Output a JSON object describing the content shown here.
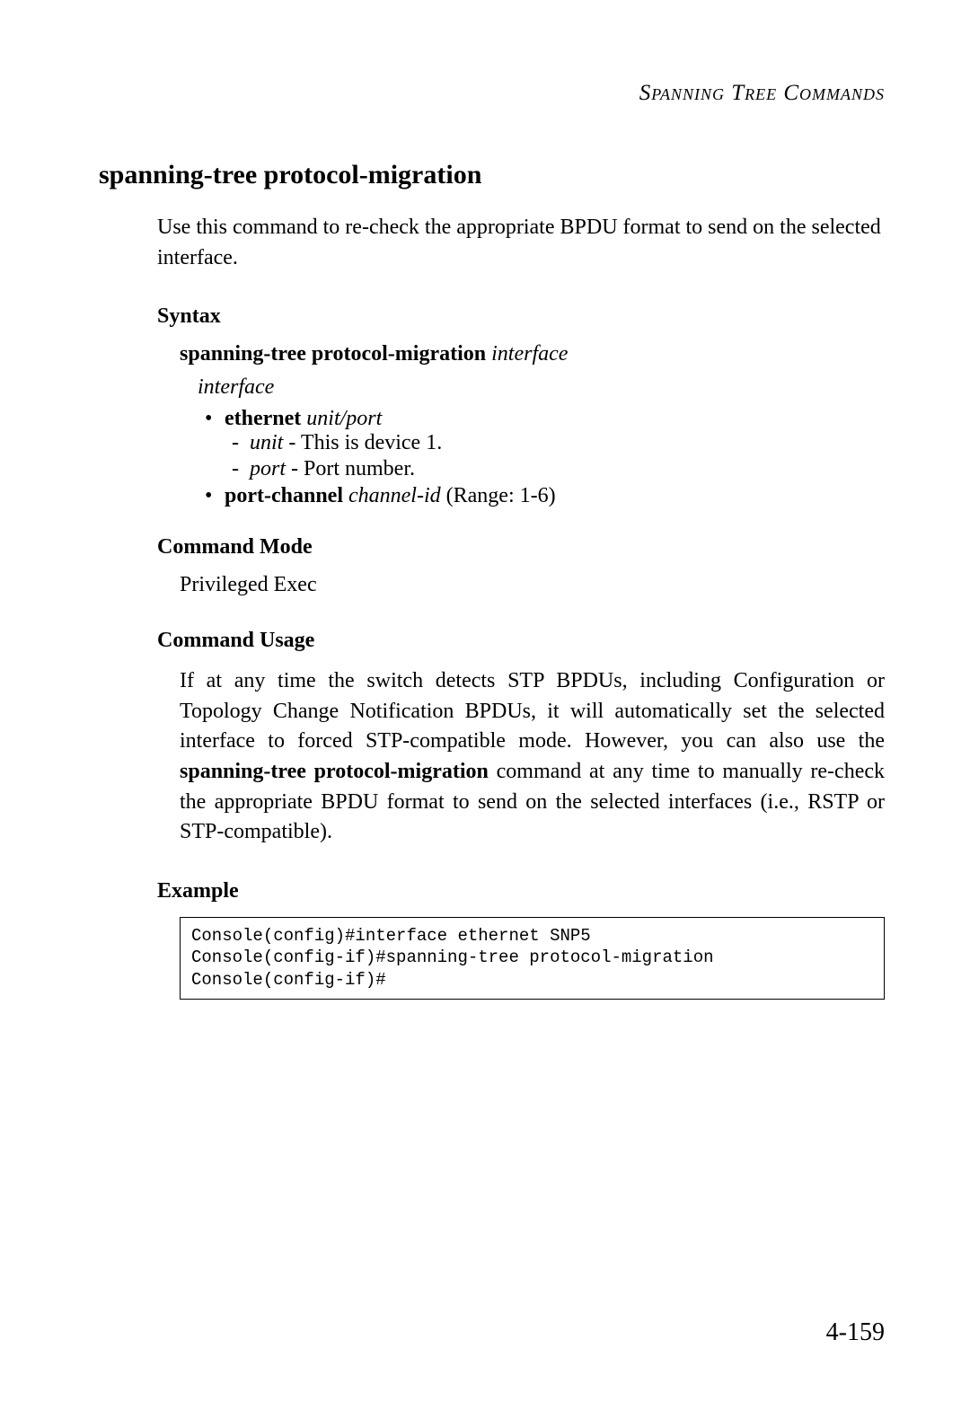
{
  "header": "Spanning Tree Commands",
  "mainHeading": "spanning-tree protocol-migration",
  "intro": "Use this command to re-check the appropriate BPDU format to send on the selected interface.",
  "sections": {
    "syntax": {
      "heading": "Syntax",
      "commandBold": "spanning-tree protocol-migration",
      "commandItalic": "interface",
      "interfaceLabel": "interface",
      "bullets": {
        "ethernet": {
          "bold": "ethernet",
          "italic": "unit/port",
          "unit": {
            "label": "unit",
            "desc": " - This is device 1."
          },
          "port": {
            "label": "port",
            "desc": " - Port number."
          }
        },
        "portChannel": {
          "bold": "port-channel",
          "italic": "channel-id",
          "after": " (Range: 1-6)"
        }
      }
    },
    "commandMode": {
      "heading": "Command Mode",
      "text": "Privileged Exec"
    },
    "commandUsage": {
      "heading": "Command Usage",
      "text1": "If at any time the switch detects STP BPDUs, including Configuration or Topology Change Notification BPDUs, it will automatically set the selected interface to forced STP-compatible mode. However, you can also use the ",
      "bold": "spanning-tree protocol-migration",
      "text2": " command at any time to manually re-check the appropriate BPDU format to send on the selected interfaces (i.e., RSTP or STP-compatible)."
    },
    "example": {
      "heading": "Example",
      "code": "Console(config)#interface ethernet SNP5\nConsole(config-if)#spanning-tree protocol-migration\nConsole(config-if)#"
    }
  },
  "pageNumber": "4-159"
}
